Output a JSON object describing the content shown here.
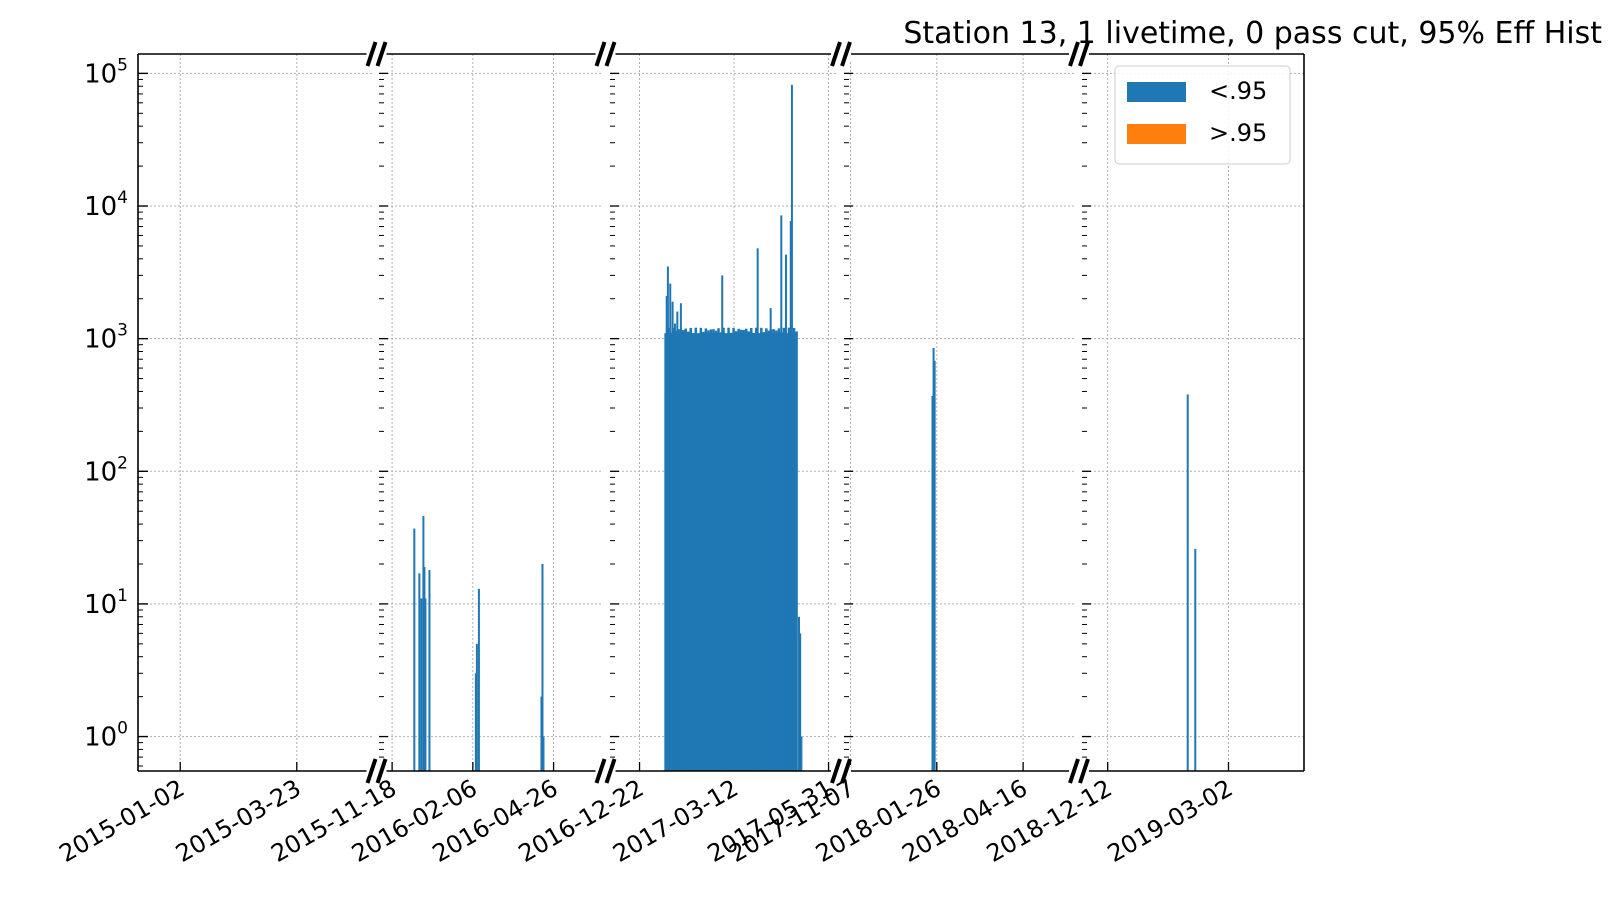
{
  "chart_data": {
    "type": "bar",
    "title": "Station 13, 1 livetime, 0 pass cut, 95% Eff Hist",
    "xlabel": "",
    "ylabel": "",
    "yscale": "log",
    "ylim": [
      0.55,
      140000
    ],
    "grid": true,
    "legend_position": "upper-right",
    "y_ticks": [
      {
        "base": "10",
        "exp": "0",
        "value": 1
      },
      {
        "base": "10",
        "exp": "1",
        "value": 10
      },
      {
        "base": "10",
        "exp": "2",
        "value": 100
      },
      {
        "base": "10",
        "exp": "3",
        "value": 1000
      },
      {
        "base": "10",
        "exp": "4",
        "value": 10000
      },
      {
        "base": "10",
        "exp": "5",
        "value": 100000
      }
    ],
    "series": [
      {
        "name": "<.95",
        "color": "#1f77b4"
      },
      {
        "name": ">.95",
        "color": "#ff7f0e"
      }
    ],
    "segments": [
      {
        "range": [
          "2014-12-04",
          "2015-05-15"
        ],
        "ticks": [
          "2015-01-02",
          "2015-03-23"
        ],
        "bars": []
      },
      {
        "range": [
          "2015-11-05",
          "2016-06-12"
        ],
        "ticks": [
          "2015-11-18",
          "2016-02-06",
          "2016-04-26"
        ],
        "bars": [
          {
            "date": "2015-12-10",
            "value": 37
          },
          {
            "date": "2015-12-15",
            "value": 17
          },
          {
            "date": "2015-12-17",
            "value": 11
          },
          {
            "date": "2015-12-19",
            "value": 46
          },
          {
            "date": "2015-12-20",
            "value": 19
          },
          {
            "date": "2015-12-21",
            "value": 11
          },
          {
            "date": "2015-12-25",
            "value": 18
          },
          {
            "date": "2016-02-09",
            "value": 3
          },
          {
            "date": "2016-02-10",
            "value": 5
          },
          {
            "date": "2016-02-12",
            "value": 13
          },
          {
            "date": "2016-04-14",
            "value": 2
          },
          {
            "date": "2016-04-15",
            "value": 20
          },
          {
            "date": "2016-04-16",
            "value": 1
          }
        ]
      },
      {
        "range": [
          "2016-11-27",
          "2017-06-08"
        ],
        "ticks": [
          "2016-12-22",
          "2017-03-12",
          "2017-05-31"
        ],
        "fill": {
          "from": "2017-01-12",
          "to": "2017-05-05",
          "value": 1100
        },
        "bars": [
          {
            "date": "2017-01-13",
            "value": 380
          },
          {
            "date": "2017-01-14",
            "value": 2100
          },
          {
            "date": "2017-01-15",
            "value": 3500
          },
          {
            "date": "2017-01-17",
            "value": 2600
          },
          {
            "date": "2017-01-19",
            "value": 1900
          },
          {
            "date": "2017-01-21",
            "value": 1300
          },
          {
            "date": "2017-01-23",
            "value": 1600
          },
          {
            "date": "2017-01-26",
            "value": 1850
          },
          {
            "date": "2017-03-02",
            "value": 3000
          },
          {
            "date": "2017-04-01",
            "value": 4800
          },
          {
            "date": "2017-04-12",
            "value": 1700
          },
          {
            "date": "2017-04-21",
            "value": 8500
          },
          {
            "date": "2017-04-25",
            "value": 4300
          },
          {
            "date": "2017-04-29",
            "value": 7700
          },
          {
            "date": "2017-04-30",
            "value": 82000
          },
          {
            "date": "2017-05-06",
            "value": 8
          },
          {
            "date": "2017-05-07",
            "value": 6
          },
          {
            "date": "2017-05-08",
            "value": 1
          }
        ]
      },
      {
        "range": [
          "2017-11-01",
          "2018-06-04"
        ],
        "ticks": [
          "2017-11-07",
          "2018-01-26",
          "2018-04-16"
        ],
        "bars": [
          {
            "date": "2018-01-22",
            "value": 370
          },
          {
            "date": "2018-01-23",
            "value": 850
          },
          {
            "date": "2018-01-24",
            "value": 680
          }
        ]
      },
      {
        "range": [
          "2018-11-25",
          "2019-04-21"
        ],
        "ticks": [
          "2018-12-12",
          "2019-03-02"
        ],
        "bars": [
          {
            "date": "2019-02-03",
            "value": 380
          },
          {
            "date": "2019-02-08",
            "value": 26
          }
        ]
      }
    ]
  }
}
